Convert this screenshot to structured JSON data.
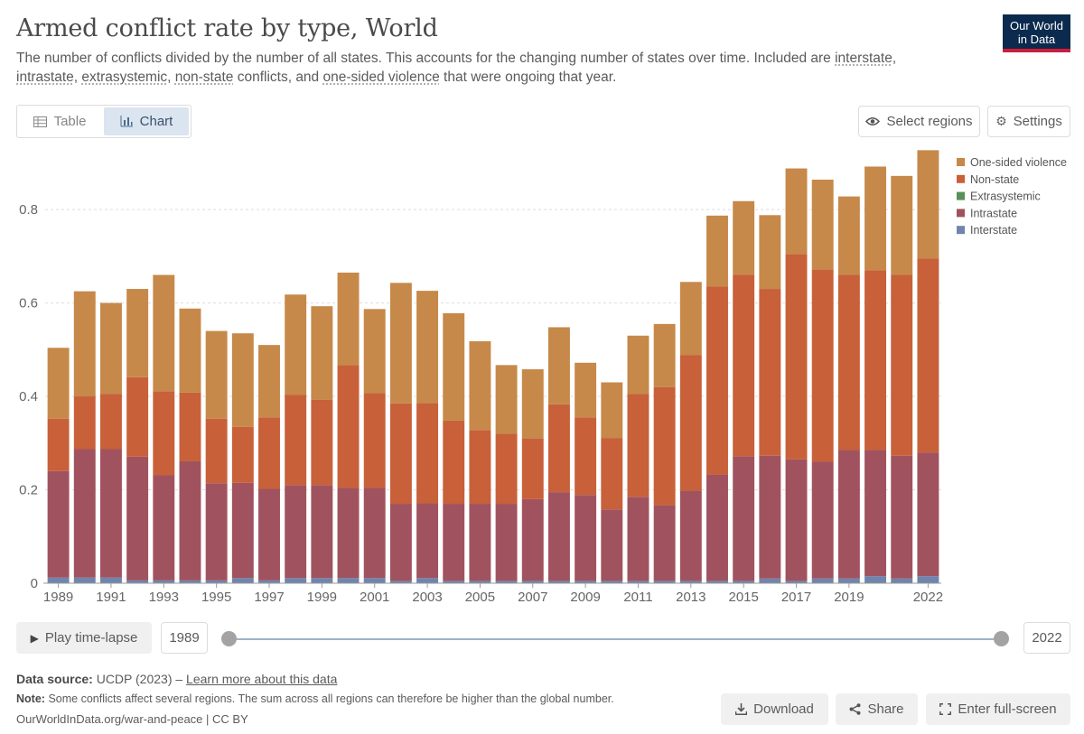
{
  "header": {
    "title": "Armed conflict rate by type, World",
    "subtitle_pre": "The number of conflicts divided by the number of all states. This accounts for the changing number of states over time. Included are ",
    "subtitle_interstate": "interstate",
    "subtitle_comma1": ",",
    "subtitle_intrastate": "intrastate",
    "subtitle_comma2": ", ",
    "subtitle_extrasystemic": "extrasystemic",
    "subtitle_comma3": ", ",
    "subtitle_nonstate": "non-state",
    "subtitle_mid": " conflicts, and ",
    "subtitle_onesided": "one-sided violence",
    "subtitle_post": " that were ongoing that year.",
    "logo_line1": "Our World",
    "logo_line2": "in Data"
  },
  "toolbar": {
    "table_label": "Table",
    "chart_label": "Chart",
    "select_regions_label": "Select regions",
    "settings_label": "Settings"
  },
  "timeline": {
    "play_label": "Play time-lapse",
    "start_year": "1989",
    "end_year": "2022"
  },
  "footer": {
    "source_label": "Data source:",
    "source_value": "UCDP (2023) –",
    "learn_more": "Learn more about this data",
    "note_label": "Note:",
    "note_text": "Some conflicts affect several regions. The sum across all regions can therefore be higher than the global number.",
    "url_text": "OurWorldInData.org/war-and-peace | CC BY",
    "download_label": "Download",
    "share_label": "Share",
    "fullscreen_label": "Enter full-screen"
  },
  "chart_data": {
    "type": "bar",
    "stacked": true,
    "title": "Armed conflict rate by type, World",
    "xlabel": "",
    "ylabel": "",
    "ylim": [
      0,
      0.92
    ],
    "yticks": [
      0,
      0.2,
      0.4,
      0.6,
      0.8
    ],
    "ytick_labels": [
      "0",
      "0.2",
      "0.4",
      "0.6",
      "0.8"
    ],
    "x": [
      1989,
      1990,
      1991,
      1992,
      1993,
      1994,
      1995,
      1996,
      1997,
      1998,
      1999,
      2000,
      2001,
      2002,
      2003,
      2004,
      2005,
      2006,
      2007,
      2008,
      2009,
      2010,
      2011,
      2012,
      2013,
      2014,
      2015,
      2016,
      2017,
      2018,
      2019,
      2020,
      2021,
      2022
    ],
    "xtick_labels": [
      "1989",
      "1991",
      "1993",
      "1995",
      "1997",
      "1999",
      "2001",
      "2003",
      "2005",
      "2007",
      "2009",
      "2011",
      "2013",
      "2015",
      "2017",
      "2019",
      "2022"
    ],
    "legend_position": "top-right",
    "grid": true,
    "series": [
      {
        "name": "Interstate",
        "color": "#6f85ad",
        "values": [
          0.012,
          0.012,
          0.012,
          0.006,
          0.006,
          0.006,
          0.006,
          0.011,
          0.006,
          0.011,
          0.011,
          0.011,
          0.011,
          0.005,
          0.011,
          0.005,
          0.005,
          0.005,
          0.005,
          0.005,
          0.005,
          0.005,
          0.005,
          0.005,
          0.005,
          0.005,
          0.005,
          0.01,
          0.005,
          0.01,
          0.01,
          0.015,
          0.01,
          0.015
        ]
      },
      {
        "name": "Intrastate",
        "color": "#a0535e",
        "values": [
          0.228,
          0.275,
          0.275,
          0.265,
          0.225,
          0.255,
          0.208,
          0.204,
          0.196,
          0.199,
          0.199,
          0.193,
          0.193,
          0.165,
          0.16,
          0.165,
          0.165,
          0.165,
          0.175,
          0.19,
          0.184,
          0.153,
          0.18,
          0.162,
          0.193,
          0.227,
          0.267,
          0.263,
          0.26,
          0.25,
          0.275,
          0.27,
          0.263,
          0.265
        ]
      },
      {
        "name": "Extrasystemic",
        "color": "#5a8f5a",
        "values": [
          0,
          0,
          0,
          0,
          0,
          0,
          0,
          0,
          0,
          0,
          0,
          0,
          0,
          0,
          0,
          0,
          0,
          0,
          0,
          0,
          0,
          0,
          0,
          0,
          0,
          0,
          0,
          0,
          0,
          0,
          0,
          0,
          0,
          0
        ]
      },
      {
        "name": "Non-state",
        "color": "#c8603a",
        "values": [
          0.112,
          0.113,
          0.118,
          0.17,
          0.18,
          0.147,
          0.138,
          0.12,
          0.153,
          0.193,
          0.183,
          0.263,
          0.203,
          0.215,
          0.215,
          0.178,
          0.158,
          0.15,
          0.13,
          0.188,
          0.166,
          0.153,
          0.22,
          0.253,
          0.29,
          0.403,
          0.388,
          0.357,
          0.44,
          0.412,
          0.375,
          0.385,
          0.387,
          0.415
        ]
      },
      {
        "name": "One-sided violence",
        "color": "#c6894a",
        "values": [
          0.152,
          0.225,
          0.195,
          0.189,
          0.249,
          0.18,
          0.188,
          0.2,
          0.155,
          0.215,
          0.2,
          0.198,
          0.18,
          0.258,
          0.24,
          0.23,
          0.19,
          0.147,
          0.148,
          0.165,
          0.117,
          0.119,
          0.125,
          0.135,
          0.157,
          0.152,
          0.158,
          0.158,
          0.183,
          0.192,
          0.168,
          0.222,
          0.212,
          0.232
        ]
      }
    ]
  }
}
